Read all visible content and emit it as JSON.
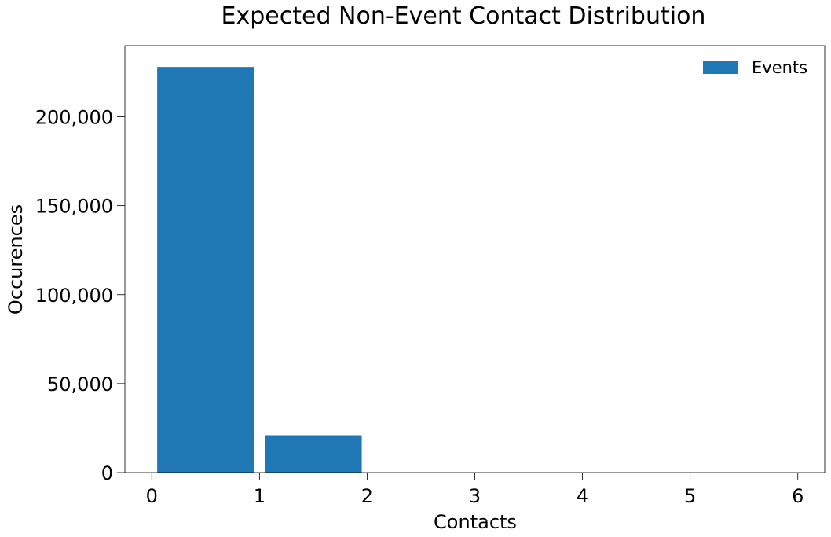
{
  "chart_data": {
    "type": "bar",
    "title": "Expected Non-Event Contact Distribution",
    "xlabel": "Contacts",
    "ylabel": "Occurences",
    "xlim": [
      -0.25,
      6.25
    ],
    "ylim": [
      0,
      240000
    ],
    "x_ticks": [
      {
        "value": 0,
        "label": "0"
      },
      {
        "value": 1,
        "label": "1"
      },
      {
        "value": 2,
        "label": "2"
      },
      {
        "value": 3,
        "label": "3"
      },
      {
        "value": 4,
        "label": "4"
      },
      {
        "value": 5,
        "label": "5"
      },
      {
        "value": 6,
        "label": "6"
      }
    ],
    "y_ticks": [
      {
        "value": 0,
        "label": "0"
      },
      {
        "value": 50000,
        "label": "50,000"
      },
      {
        "value": 100000,
        "label": "100,000"
      },
      {
        "value": 150000,
        "label": "150,000"
      },
      {
        "value": 200000,
        "label": "200,000"
      }
    ],
    "bins": [
      {
        "x0": 0,
        "x1": 1,
        "value": 228000
      },
      {
        "x0": 1,
        "x1": 2,
        "value": 21000
      },
      {
        "x0": 2,
        "x1": 3,
        "value": 0
      },
      {
        "x0": 3,
        "x1": 4,
        "value": 0
      },
      {
        "x0": 4,
        "x1": 5,
        "value": 0
      },
      {
        "x0": 5,
        "x1": 6,
        "value": 0
      }
    ],
    "series": [
      {
        "name": "Events",
        "color": "#1f77b4"
      }
    ],
    "legend": "top-right",
    "grid": false
  }
}
